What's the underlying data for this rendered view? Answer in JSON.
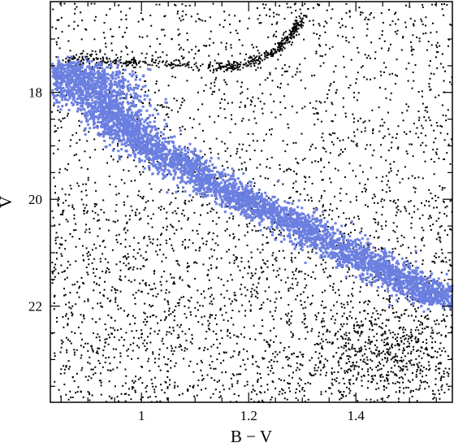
{
  "chart_data": {
    "type": "scatter",
    "xlabel": "B − V",
    "ylabel": "V",
    "xlim": [
      0.83,
      1.58
    ],
    "ylim": [
      23.8,
      16.3
    ],
    "y_inverted": true,
    "xticks": [
      1.0,
      1.2,
      1.4
    ],
    "xtick_labels": [
      "1",
      "1.2",
      "1.4"
    ],
    "yticks": [
      18,
      20,
      22
    ],
    "ytick_labels": [
      "18",
      "20",
      "22"
    ],
    "grid": false,
    "legend": "none",
    "series": [
      {
        "role": "field stars",
        "color": "#000000",
        "distribution": "uniform field scatter with denser horizontal ridge near V 17.4 and red-clump concentration near B−V 1.45, V 22.5–23",
        "ridge_points": [
          [
            0.86,
            17.35
          ],
          [
            0.95,
            17.4
          ],
          [
            1.05,
            17.45
          ],
          [
            1.15,
            17.5
          ],
          [
            1.2,
            17.45
          ],
          [
            1.25,
            17.2
          ],
          [
            1.28,
            16.9
          ],
          [
            1.3,
            16.6
          ]
        ],
        "clump_center": [
          1.45,
          22.8
        ]
      },
      {
        "role": "main-sequence members",
        "color": "#6b7fe0",
        "sequence": [
          {
            "x": 0.84,
            "y": 17.5
          },
          {
            "x": 0.88,
            "y": 17.75
          },
          {
            "x": 0.93,
            "y": 18.2
          },
          {
            "x": 0.97,
            "y": 18.7
          },
          {
            "x": 1.02,
            "y": 19.05
          },
          {
            "x": 1.08,
            "y": 19.35
          },
          {
            "x": 1.14,
            "y": 19.75
          },
          {
            "x": 1.2,
            "y": 20.05
          },
          {
            "x": 1.27,
            "y": 20.35
          },
          {
            "x": 1.33,
            "y": 20.7
          },
          {
            "x": 1.4,
            "y": 21.05
          },
          {
            "x": 1.46,
            "y": 21.35
          },
          {
            "x": 1.52,
            "y": 21.65
          },
          {
            "x": 1.57,
            "y": 21.9
          }
        ]
      }
    ]
  }
}
